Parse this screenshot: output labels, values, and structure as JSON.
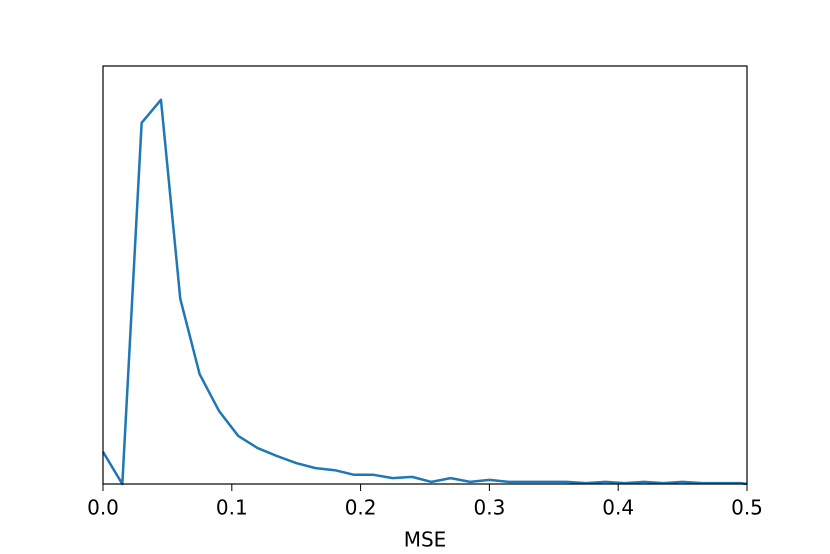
{
  "chart_data": {
    "type": "line",
    "x_label": "MSE",
    "color": "#1f77b4",
    "x": [
      0,
      0.015,
      0.03,
      0.045,
      0.06,
      0.075,
      0.09,
      0.105,
      0.12,
      0.135,
      0.15,
      0.165,
      0.18,
      0.195,
      0.21,
      0.225,
      0.24,
      0.255,
      0.27,
      0.285,
      0.3,
      0.315,
      0.33,
      0.345,
      0.36,
      0.375,
      0.39,
      0.405,
      0.42,
      0.435,
      0.45,
      0.465,
      0.48,
      0.495,
      0.5
    ],
    "values": [
      0.077,
      0,
      0.864,
      0.919,
      0.443,
      0.263,
      0.175,
      0.115,
      0.086,
      0.067,
      0.05,
      0.038,
      0.033,
      0.022,
      0.022,
      0.014,
      0.017,
      0.005,
      0.014,
      0.005,
      0.01,
      0.005,
      0.005,
      0.005,
      0.005,
      0.002,
      0.005,
      0.002,
      0.005,
      0.002,
      0.005,
      0.002,
      0.002,
      0.002,
      0
    ],
    "xlim": [
      0,
      0.5
    ],
    "ylim": [
      0,
      1
    ],
    "xticks": [
      {
        "value": 0,
        "label": "0.0"
      },
      0.1,
      0.2,
      0.3,
      0.4,
      0.5
    ]
  }
}
